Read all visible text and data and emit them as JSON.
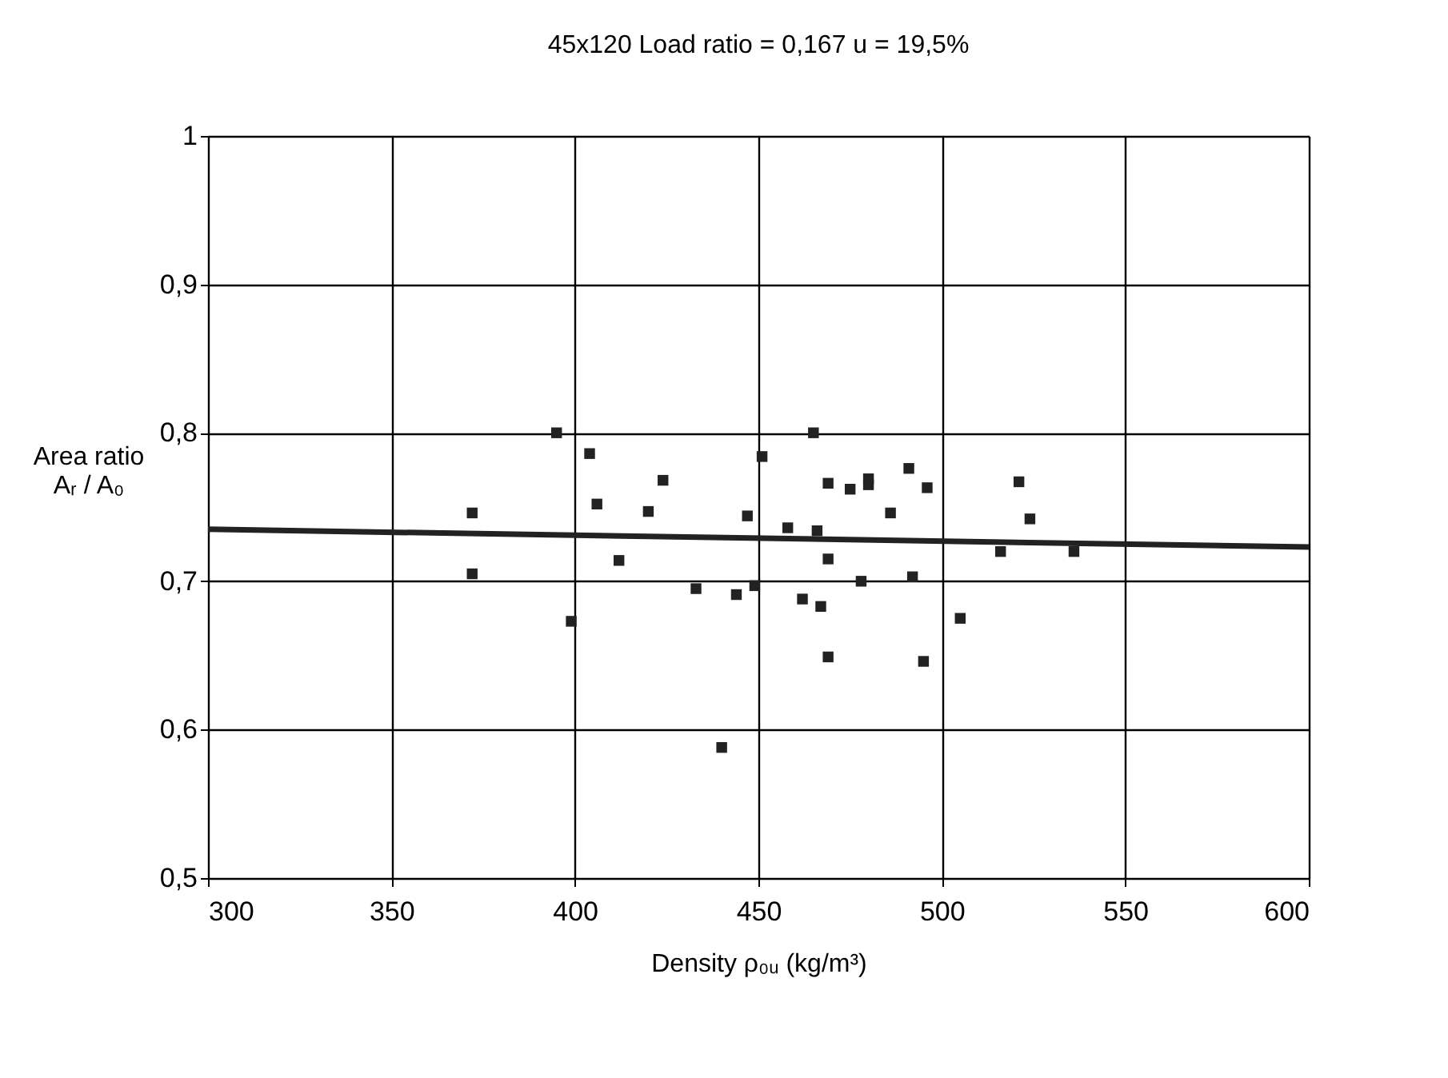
{
  "chart_data": {
    "type": "scatter",
    "title": "45x120    Load ratio = 0,167    u = 19,5%",
    "xlabel": "Density ρ₀ᵤ (kg/m³)",
    "ylabel": "Area ratio\nAᵣ / A₀",
    "xlim": [
      300,
      600
    ],
    "xticks": [
      300,
      350,
      400,
      450,
      500,
      550,
      600
    ],
    "ylim": [
      0.5,
      1
    ],
    "yticks": [
      {
        "value": 0.5,
        "label": "0,5"
      },
      {
        "value": 0.6,
        "label": "0,6"
      },
      {
        "value": 0.7,
        "label": "0,7"
      },
      {
        "value": 0.8,
        "label": "0,8"
      },
      {
        "value": 0.9,
        "label": "0,9"
      },
      {
        "value": 1,
        "label": "1"
      }
    ],
    "grid": true,
    "series": [
      {
        "marker": "square",
        "color": "#222222",
        "x": [
          395,
          404,
          424,
          372,
          406,
          420,
          412,
          372,
          433,
          399,
          440,
          465,
          451,
          469,
          475,
          480,
          480,
          486,
          447,
          458,
          466,
          469,
          478,
          444,
          449,
          462,
          467,
          469,
          491,
          496,
          521,
          524,
          516,
          536,
          492,
          505,
          495
        ],
        "values": [
          0.8,
          0.786,
          0.768,
          0.746,
          0.752,
          0.747,
          0.714,
          0.705,
          0.695,
          0.673,
          0.588,
          0.8,
          0.784,
          0.766,
          0.762,
          0.769,
          0.765,
          0.746,
          0.744,
          0.736,
          0.734,
          0.715,
          0.7,
          0.691,
          0.697,
          0.688,
          0.683,
          0.649,
          0.776,
          0.763,
          0.767,
          0.742,
          0.72,
          0.72,
          0.703,
          0.675,
          0.646
        ]
      },
      {
        "type": "line",
        "marker": "none",
        "line_style": "solid",
        "color": "#222222",
        "x": [
          300,
          600
        ],
        "values": [
          0.735,
          0.723
        ]
      }
    ]
  }
}
